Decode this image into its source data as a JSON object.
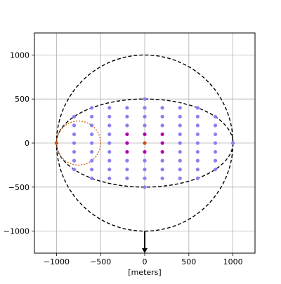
{
  "chart_data": {
    "type": "scatter",
    "title": "",
    "xlabel": "[meters]",
    "ylabel": "",
    "xlim": [
      -1250,
      1250
    ],
    "ylim": [
      -1250,
      1250
    ],
    "grid": true,
    "xticks": [
      -1000,
      -500,
      0,
      500,
      1000
    ],
    "yticks": [
      -1000,
      -500,
      0,
      500,
      1000
    ],
    "xtick_labels": [
      "−1000",
      "−500",
      "0",
      "500",
      "1000"
    ],
    "ytick_labels": [
      "−1000",
      "−500",
      "0",
      "500",
      "1000"
    ],
    "curves": [
      {
        "shape": "ellipse",
        "cx": 0,
        "cy": 0,
        "rx": 1000,
        "ry": 1000,
        "color": "#000000",
        "style": "dashed"
      },
      {
        "shape": "ellipse",
        "cx": 0,
        "cy": 0,
        "rx": 1000,
        "ry": 500,
        "color": "#000000",
        "style": "dashed"
      },
      {
        "shape": "ellipse",
        "cx": -750,
        "cy": 0,
        "rx": 250,
        "ry": 250,
        "color": "#d2691e",
        "style": "dotted"
      }
    ],
    "series": [
      {
        "color": "#8b7ff0",
        "points": [
          [
            -800,
            300
          ],
          [
            -800,
            200
          ],
          [
            -800,
            100
          ],
          [
            -800,
            0
          ],
          [
            -800,
            -100
          ],
          [
            -800,
            -200
          ],
          [
            -800,
            -300
          ],
          [
            -600,
            400
          ],
          [
            -600,
            300
          ],
          [
            -600,
            200
          ],
          [
            -600,
            100
          ],
          [
            -600,
            0
          ],
          [
            -600,
            -100
          ],
          [
            -600,
            -200
          ],
          [
            -600,
            -300
          ],
          [
            -600,
            -400
          ],
          [
            -400,
            400
          ],
          [
            -400,
            300
          ],
          [
            -400,
            200
          ],
          [
            -400,
            100
          ],
          [
            -400,
            0
          ],
          [
            -400,
            -100
          ],
          [
            -400,
            -200
          ],
          [
            -400,
            -300
          ],
          [
            -400,
            -400
          ],
          [
            -200,
            400
          ],
          [
            -200,
            300
          ],
          [
            -200,
            200
          ],
          [
            -200,
            -200
          ],
          [
            -200,
            -300
          ],
          [
            -200,
            -400
          ],
          [
            0,
            500
          ],
          [
            0,
            400
          ],
          [
            0,
            300
          ],
          [
            0,
            200
          ],
          [
            0,
            -200
          ],
          [
            0,
            -300
          ],
          [
            0,
            -400
          ],
          [
            0,
            -500
          ],
          [
            200,
            400
          ],
          [
            200,
            300
          ],
          [
            200,
            200
          ],
          [
            200,
            -200
          ],
          [
            200,
            -300
          ],
          [
            200,
            -400
          ],
          [
            400,
            400
          ],
          [
            400,
            300
          ],
          [
            400,
            200
          ],
          [
            400,
            100
          ],
          [
            400,
            0
          ],
          [
            400,
            -100
          ],
          [
            400,
            -200
          ],
          [
            400,
            -300
          ],
          [
            400,
            -400
          ],
          [
            600,
            400
          ],
          [
            600,
            300
          ],
          [
            600,
            200
          ],
          [
            600,
            100
          ],
          [
            600,
            0
          ],
          [
            600,
            -100
          ],
          [
            600,
            -200
          ],
          [
            600,
            -300
          ],
          [
            600,
            -400
          ],
          [
            800,
            300
          ],
          [
            800,
            200
          ],
          [
            800,
            100
          ],
          [
            800,
            0
          ],
          [
            800,
            -100
          ],
          [
            800,
            -200
          ],
          [
            800,
            -300
          ],
          [
            1000,
            0
          ]
        ]
      },
      {
        "color": "#b000b0",
        "points": [
          [
            -200,
            100
          ],
          [
            -200,
            0
          ],
          [
            -200,
            -100
          ],
          [
            0,
            100
          ],
          [
            0,
            -100
          ],
          [
            200,
            100
          ],
          [
            200,
            0
          ],
          [
            200,
            -100
          ]
        ]
      },
      {
        "color": "#c8501e",
        "points": [
          [
            0,
            0
          ],
          [
            -1000,
            0
          ]
        ]
      }
    ],
    "annotations": [
      {
        "type": "arrow",
        "from": [
          0,
          -1000
        ],
        "to": [
          0,
          -1250
        ],
        "color": "#000000"
      }
    ]
  }
}
